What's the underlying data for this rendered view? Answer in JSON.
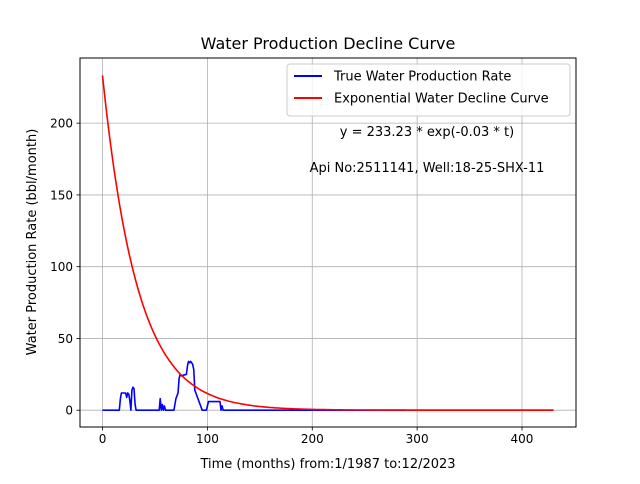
{
  "chart_data": {
    "type": "line",
    "title": "Water Production Decline Curve",
    "xlabel": "Time (months) from:1/1987 to:12/2023",
    "ylabel": "Water Production Rate (bbl/month)",
    "xlim": [
      -21.5,
      451.5
    ],
    "ylim": [
      -11.7,
      245.4
    ],
    "xticks": [
      0,
      100,
      200,
      300,
      400
    ],
    "yticks": [
      0,
      50,
      100,
      150,
      200
    ],
    "grid": true,
    "legend_position": "top-right",
    "annotations": [
      "y = 233.23 * exp(-0.03 * t)",
      "Api No:2511141, Well:18-25-SHX-11"
    ],
    "series": [
      {
        "name": "True Water Production Rate",
        "color": "#0000ff",
        "x": [
          0,
          16,
          17,
          18,
          22,
          23,
          24,
          25,
          26,
          27,
          28,
          29,
          30,
          31,
          32,
          33,
          34,
          54,
          55,
          56,
          57,
          58,
          59,
          60,
          61,
          62,
          68,
          70,
          72,
          73,
          74,
          75,
          80,
          81,
          82,
          83,
          84,
          86,
          87,
          88,
          95,
          99,
          100,
          101,
          102,
          112,
          113,
          114,
          115,
          430
        ],
        "y": [
          0,
          0,
          8,
          12,
          12,
          9,
          12,
          11,
          7,
          0,
          14,
          16,
          15,
          4,
          0,
          0,
          0,
          0,
          8,
          0,
          4,
          0,
          3,
          0,
          0,
          0,
          0,
          8,
          12,
          22,
          25,
          24,
          25,
          31,
          34,
          33,
          34,
          32,
          28,
          14,
          0,
          0,
          3,
          6,
          6,
          6,
          0,
          3,
          0,
          0
        ]
      },
      {
        "name": "Exponential Water Decline Curve",
        "color": "#ff0000",
        "equation": "y = 233.23 * exp(-0.03 * t)",
        "a": 233.23,
        "b": 0.03,
        "x_range": [
          0,
          430
        ]
      }
    ]
  }
}
